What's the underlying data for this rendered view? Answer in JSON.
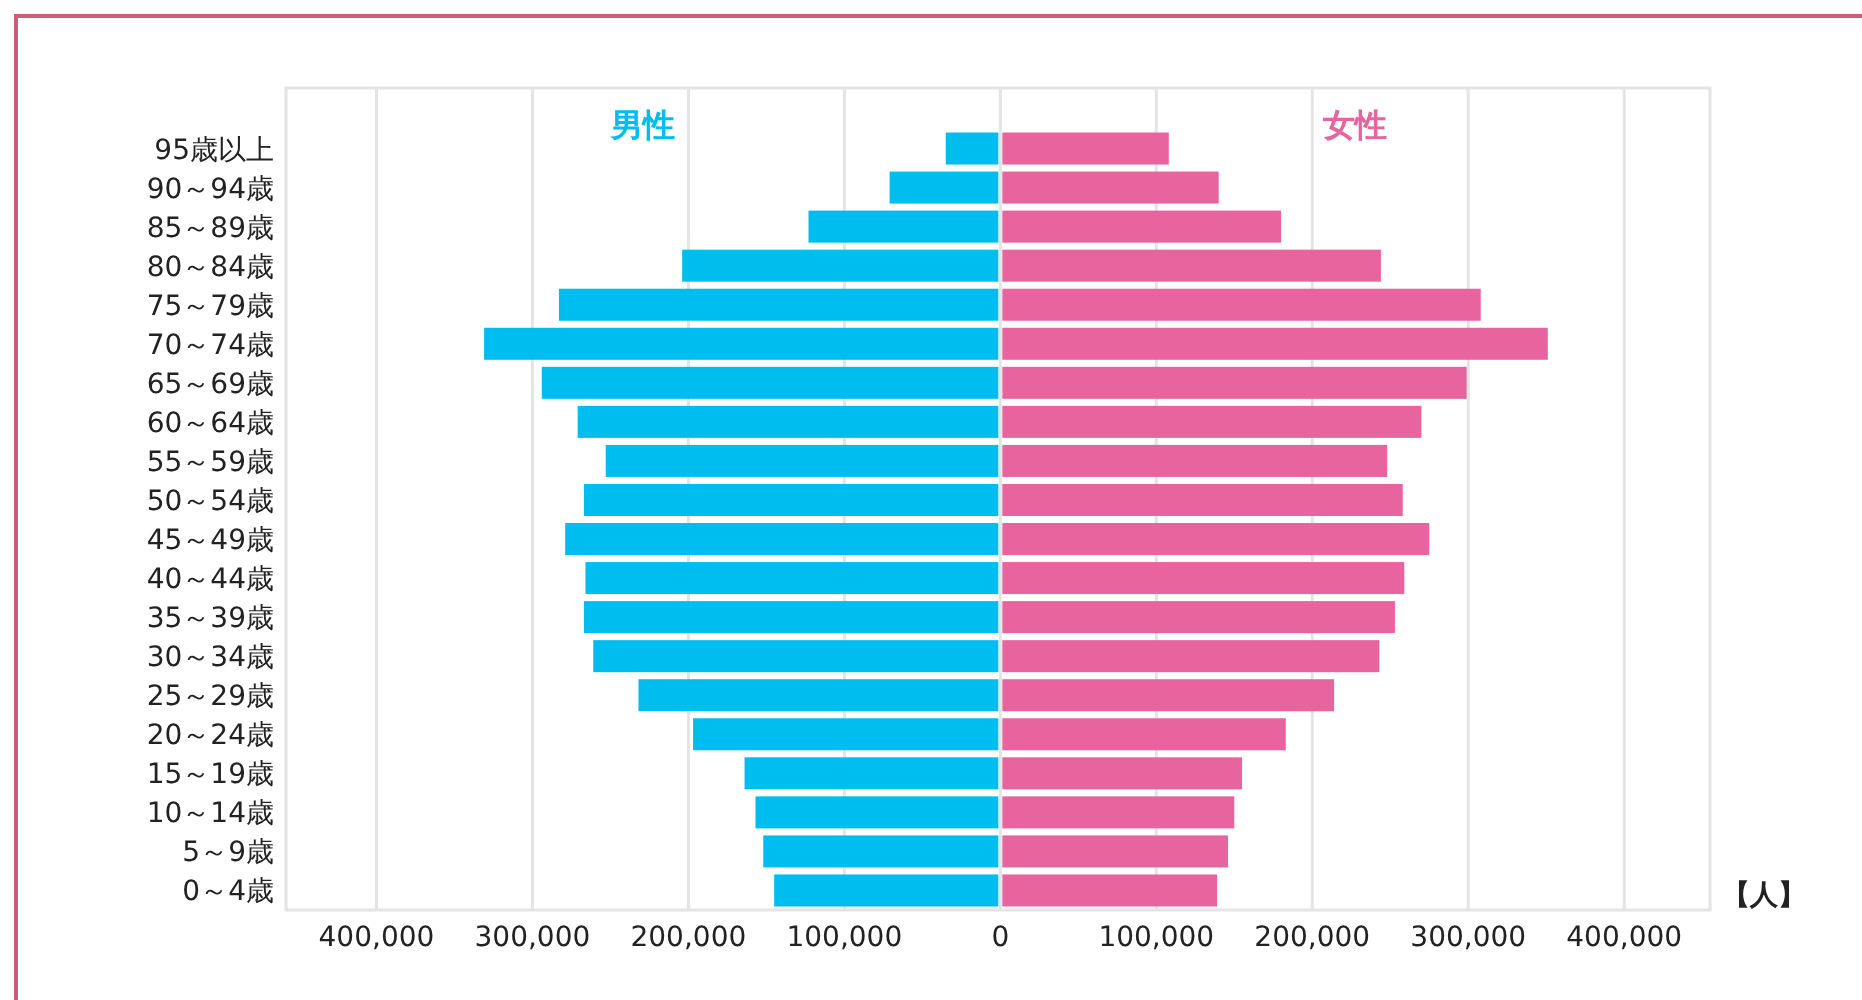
{
  "chart_data": {
    "type": "bar",
    "orientation": "horizontal",
    "stacked": true,
    "xlabel": "【人】",
    "categories": [
      "95歳以上",
      "90～94歳",
      "85～89歳",
      "80～84歳",
      "75～79歳",
      "70～74歳",
      "65～69歳",
      "60～64歳",
      "55～59歳",
      "50～54歳",
      "45～49歳",
      "40～44歳",
      "35～39歳",
      "30～34歳",
      "25～29歳",
      "20～24歳",
      "15～19歳",
      "10～14歳",
      "5～9歳",
      "0～4歳"
    ],
    "series": [
      {
        "name": "男性",
        "color": "#00bdf0",
        "values": [
          -35000,
          -71000,
          -123000,
          -204000,
          -283000,
          -331000,
          -294000,
          -271000,
          -253000,
          -267000,
          -279000,
          -266000,
          -267000,
          -261000,
          -232000,
          -197000,
          -164000,
          -157000,
          -152000,
          -145000
        ]
      },
      {
        "name": "女性",
        "color": "#e8649f",
        "values": [
          108000,
          140000,
          180000,
          244000,
          308000,
          351000,
          299000,
          270000,
          248000,
          258000,
          275000,
          259000,
          253000,
          243000,
          214000,
          183000,
          155000,
          150000,
          146000,
          139000
        ]
      }
    ],
    "xlim": [
      -458000,
      455000
    ],
    "xticks": [
      {
        "value": -400000,
        "label": "400,000"
      },
      {
        "value": -300000,
        "label": "300,000"
      },
      {
        "value": -200000,
        "label": "200,000"
      },
      {
        "value": -100000,
        "label": "100,000"
      },
      0,
      {
        "value": 100000,
        "label": "100,000"
      },
      {
        "value": 200000,
        "label": "200,000"
      },
      {
        "value": 300000,
        "label": "300,000"
      },
      {
        "value": 400000,
        "label": "400,000"
      }
    ],
    "grid": "x"
  }
}
